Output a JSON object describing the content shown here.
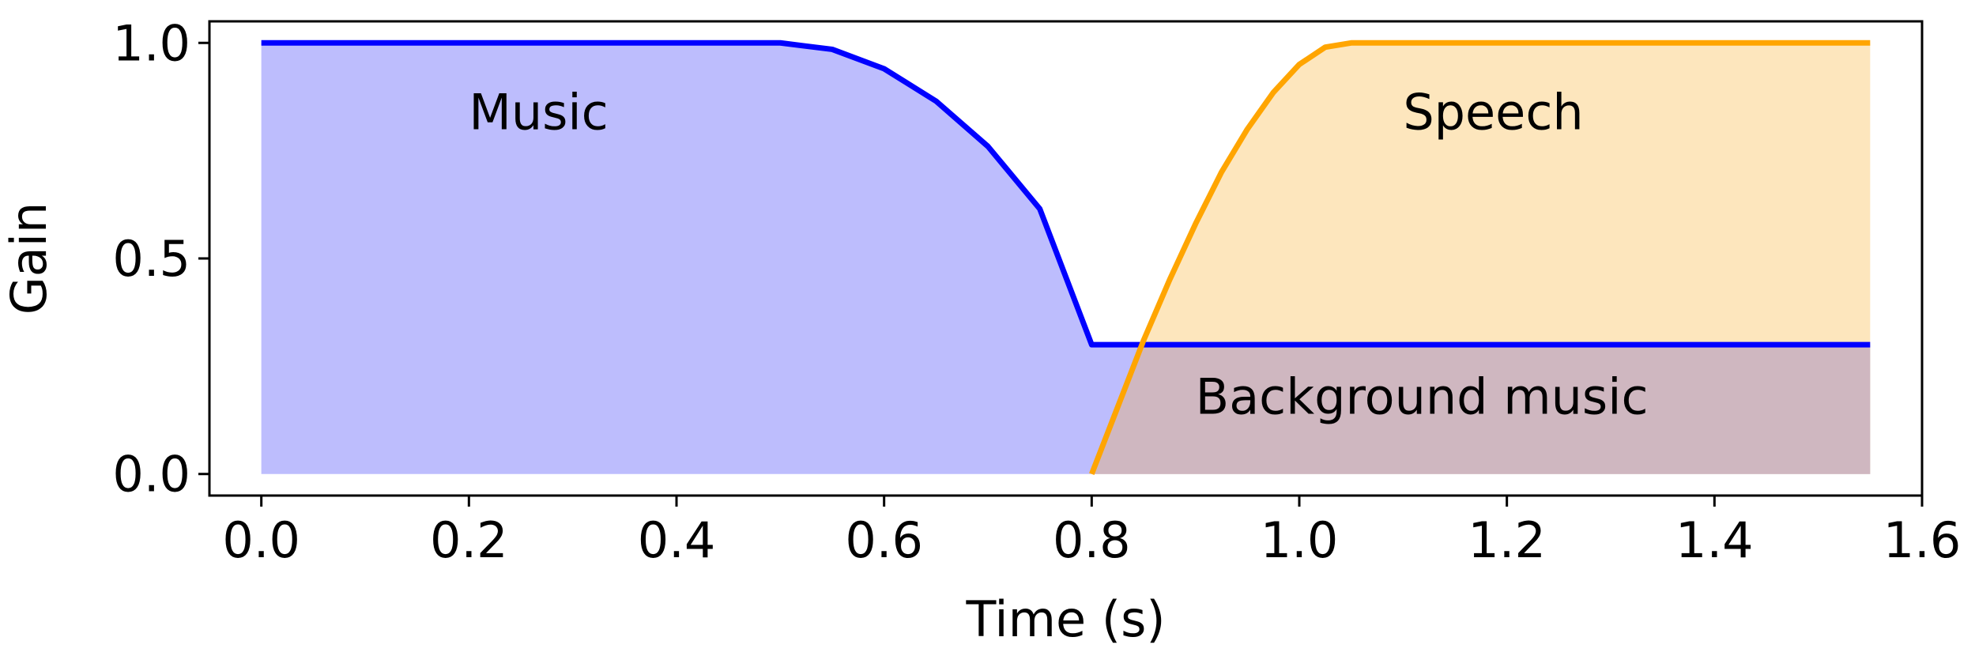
{
  "chart_data": {
    "type": "area",
    "xlabel": "Time (s)",
    "ylabel": "Gain",
    "xlim": [
      -0.05,
      1.6
    ],
    "ylim": [
      -0.05,
      1.05
    ],
    "xticks": [
      "0.0",
      "0.2",
      "0.4",
      "0.6",
      "0.8",
      "1.0",
      "1.2",
      "1.4",
      "1.6"
    ],
    "yticks": [
      "0.0",
      "0.5",
      "1.0"
    ],
    "grid": false,
    "series": [
      {
        "key": "music",
        "color": "#0000ff",
        "fill_color": "#bdbdfd",
        "fill_opacity": 1,
        "x": [
          0.0,
          0.1,
          0.2,
          0.3,
          0.4,
          0.5,
          0.55,
          0.6,
          0.65,
          0.7,
          0.75,
          0.8,
          0.9,
          1.0,
          1.1,
          1.2,
          1.3,
          1.4,
          1.5,
          1.55
        ],
        "y": [
          1.0,
          1.0,
          1.0,
          1.0,
          1.0,
          1.0,
          0.985,
          0.94,
          0.865,
          0.76,
          0.615,
          0.3,
          0.3,
          0.3,
          0.3,
          0.3,
          0.3,
          0.3,
          0.3,
          0.3
        ]
      },
      {
        "key": "speech",
        "color": "#ffa500",
        "fill_color": "#fde6bd",
        "fill_opacity": 1,
        "x": [
          0.8,
          0.825,
          0.85,
          0.875,
          0.9,
          0.925,
          0.95,
          0.975,
          1.0,
          1.025,
          1.05,
          1.1,
          1.2,
          1.3,
          1.4,
          1.5,
          1.55
        ],
        "y": [
          0.0,
          0.155,
          0.31,
          0.45,
          0.58,
          0.7,
          0.8,
          0.885,
          0.95,
          0.99,
          1.0,
          1.0,
          1.0,
          1.0,
          1.0,
          1.0,
          1.0
        ]
      }
    ],
    "overlap_fill_color": "#cfb7c0",
    "annotations": [
      {
        "text": "Music",
        "x": 0.2,
        "y": 0.8
      },
      {
        "text": "Speech",
        "x": 1.1,
        "y": 0.8
      },
      {
        "text": "Background music",
        "x": 0.9,
        "y": 0.14
      }
    ]
  }
}
